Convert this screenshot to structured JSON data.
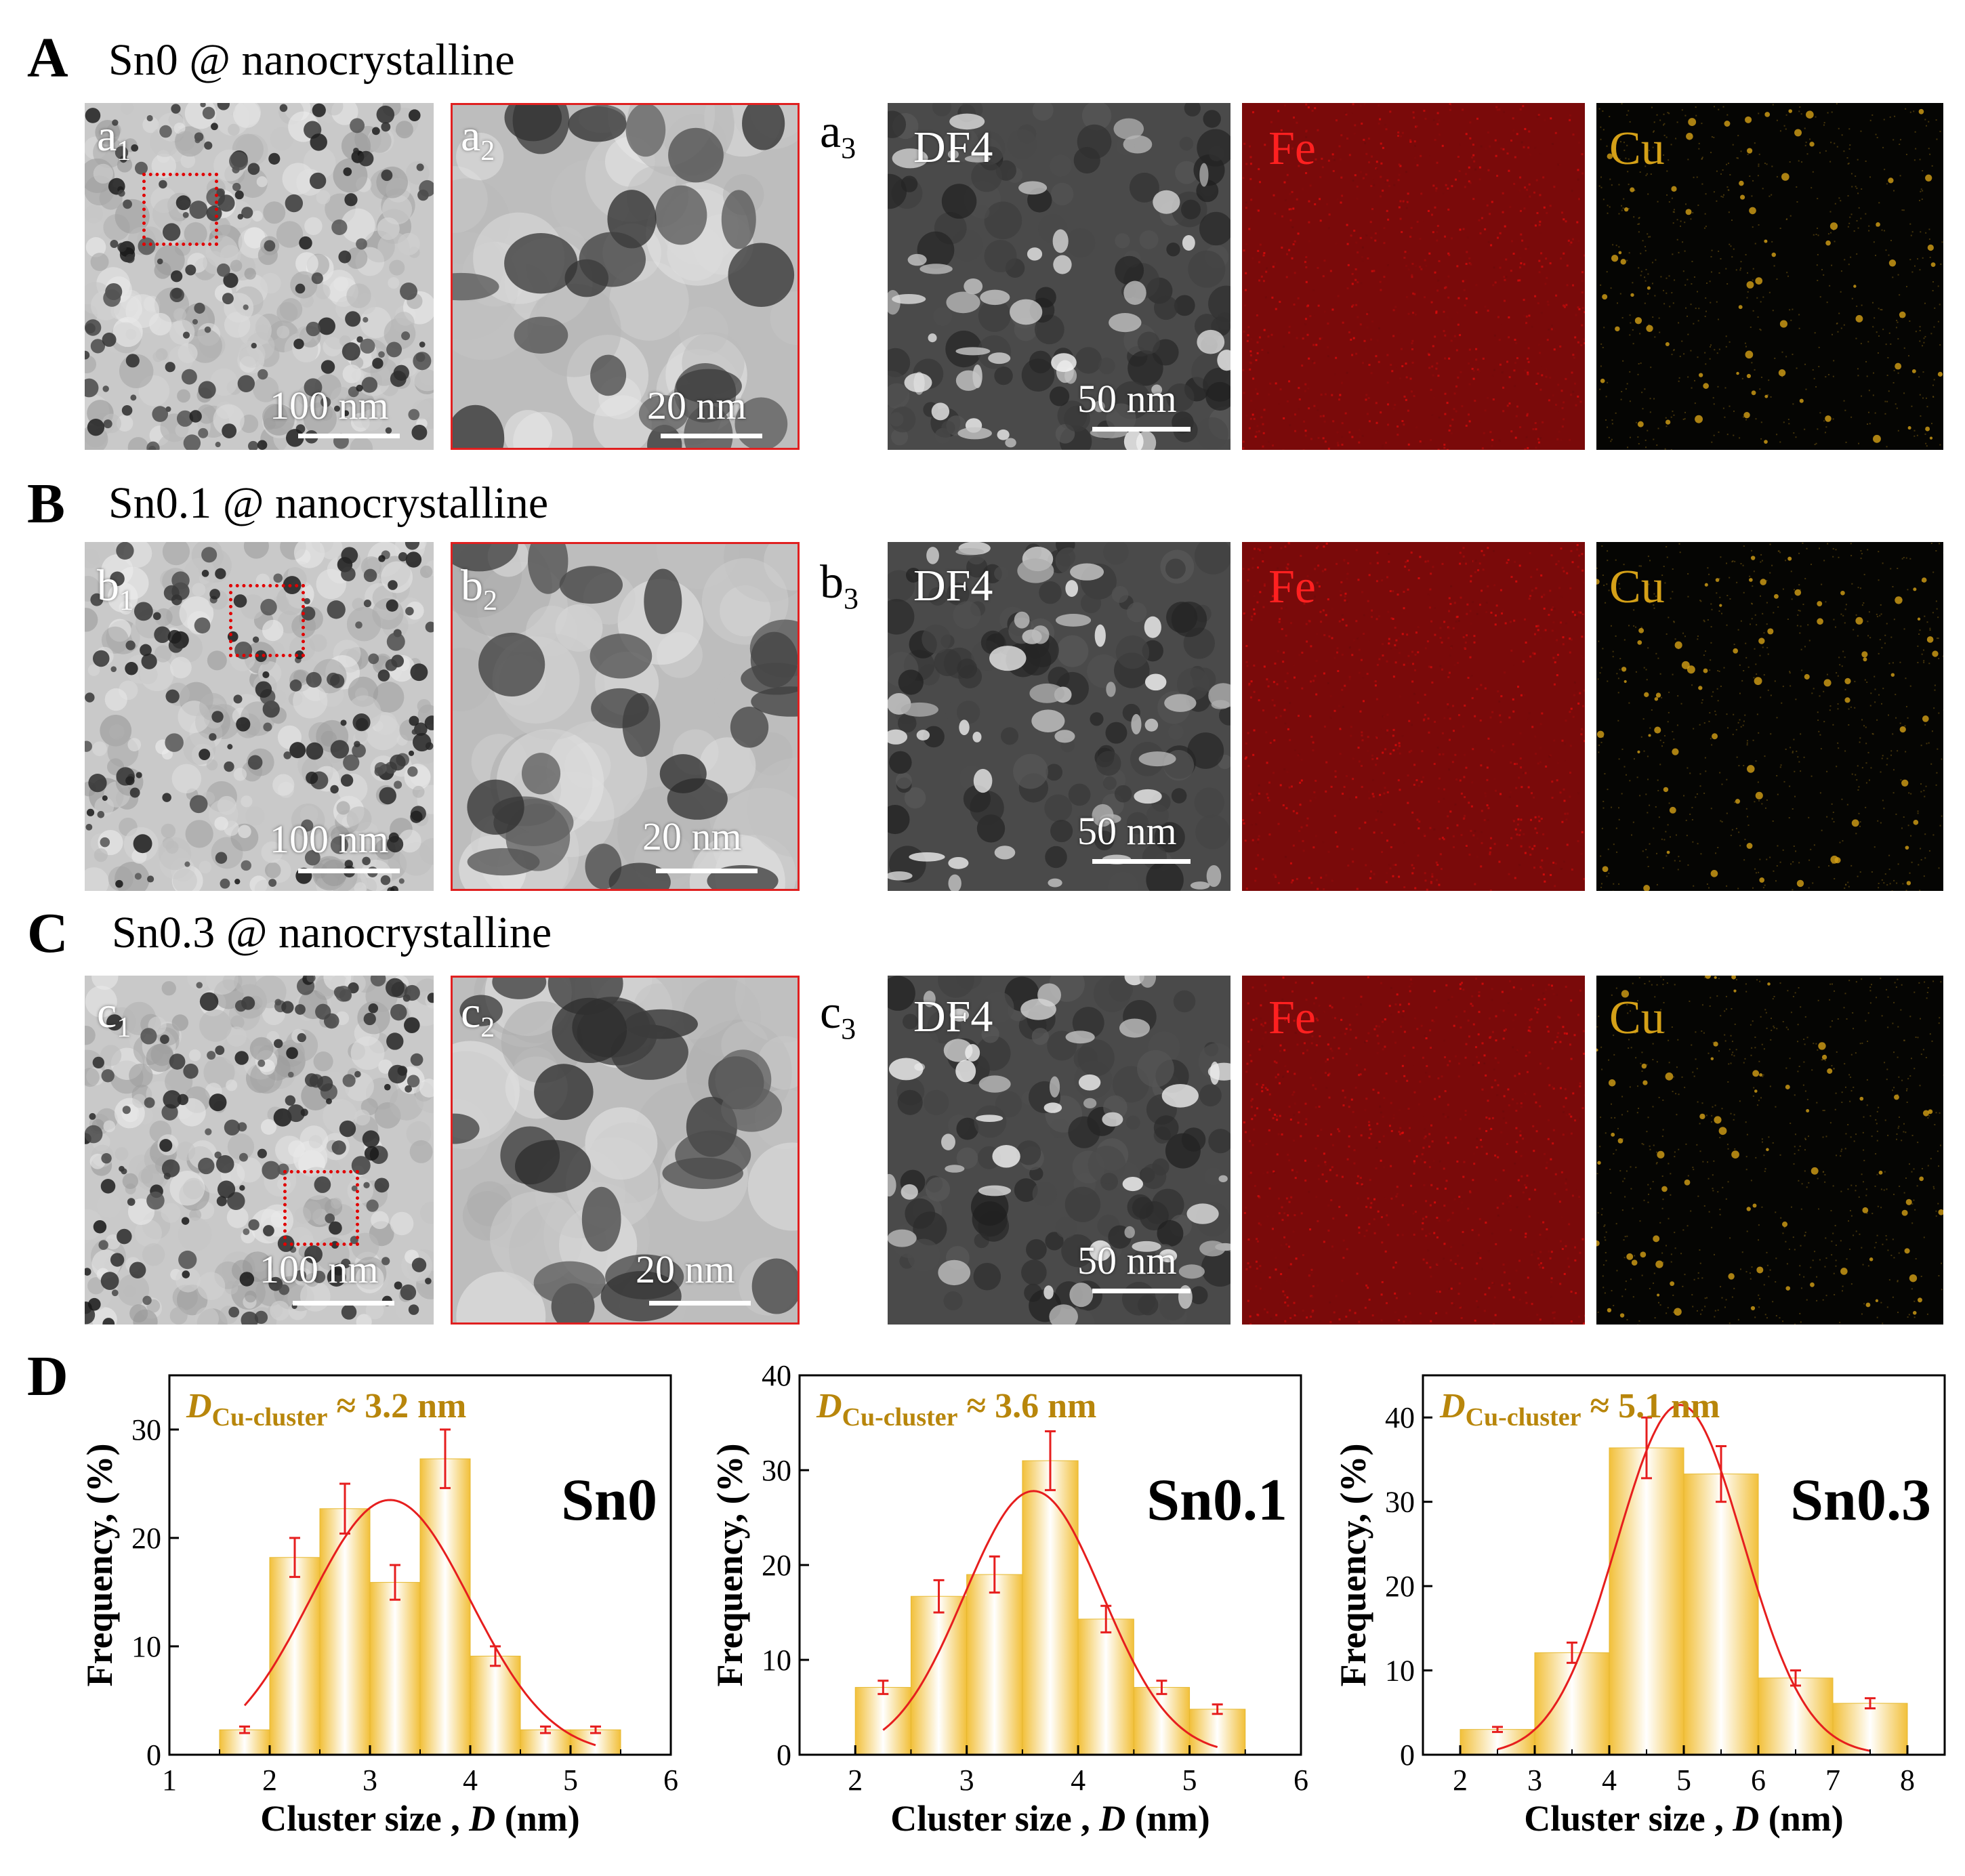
{
  "rows": [
    {
      "letter": "A",
      "title": "Sn0 @ nanocrystalline",
      "p1": "a",
      "p1_sub": "1",
      "p2": "a",
      "p2_sub": "2",
      "p3": "a",
      "p3_sub": "3"
    },
    {
      "letter": "B",
      "title": "Sn0.1 @ nanocrystalline",
      "p1": "b",
      "p1_sub": "1",
      "p2": "b",
      "p2_sub": "2",
      "p3": "b",
      "p3_sub": "3"
    },
    {
      "letter": "C",
      "title": "Sn0.3 @ nanocrystalline",
      "p1": "c",
      "p1_sub": "1",
      "p2": "c",
      "p2_sub": "2",
      "p3": "c",
      "p3_sub": "3"
    }
  ],
  "labels": {
    "df": "DF4",
    "fe": "Fe",
    "cu": "Cu"
  },
  "scalebars": {
    "overview": "100 nm",
    "zoom": "20 nm",
    "df": "50 nm"
  },
  "colors": {
    "fe_map": "#d01010",
    "cu_map": "#d4a017",
    "zoom_frame": "#e02020",
    "bar_fill": "#f2c03a",
    "fit_curve": "#e61e1e",
    "annotation": "#b8860b"
  },
  "panel_d": {
    "letter": "D"
  },
  "chart_data": [
    {
      "type": "bar",
      "sample": "Sn0",
      "annotation": "D",
      "annotation_sub": "Cu-cluster",
      "annotation_value": "≈ 3.2 nm",
      "xlabel": "Cluster size , D (nm)",
      "ylabel": "Frequency, (%)",
      "xlim": [
        1,
        6
      ],
      "ylim": [
        0,
        35
      ],
      "xticks": [
        1,
        2,
        3,
        4,
        5,
        6
      ],
      "yticks": [
        0,
        10,
        20,
        30
      ],
      "bin_width": 0.5,
      "x": [
        1.75,
        2.25,
        2.75,
        3.25,
        3.75,
        4.25,
        4.75,
        5.25
      ],
      "values": [
        2.3,
        18.2,
        22.7,
        15.9,
        27.3,
        9.1,
        2.3,
        2.3
      ],
      "errors": [
        0.3,
        1.8,
        2.3,
        1.6,
        2.7,
        0.9,
        0.3,
        0.3
      ],
      "fit": {
        "mean": 3.2,
        "sigma": 0.8,
        "amplitude": 23.5,
        "xrange": [
          1.75,
          5.25
        ]
      }
    },
    {
      "type": "bar",
      "sample": "Sn0.1",
      "annotation": "D",
      "annotation_sub": "Cu-cluster",
      "annotation_value": "≈ 3.6 nm",
      "xlabel": "Cluster size , D (nm)",
      "ylabel": "Frequency, (%)",
      "xlim": [
        1.5,
        6
      ],
      "ylim": [
        0,
        40
      ],
      "xticks": [
        2,
        3,
        4,
        5,
        6
      ],
      "yticks": [
        0,
        10,
        20,
        30,
        40
      ],
      "bin_width": 0.5,
      "x": [
        2.25,
        2.75,
        3.25,
        3.75,
        4.25,
        4.75,
        5.25
      ],
      "values": [
        7.1,
        16.7,
        19.0,
        31.0,
        14.3,
        7.1,
        4.8
      ],
      "errors": [
        0.7,
        1.7,
        1.9,
        3.1,
        1.4,
        0.7,
        0.5
      ],
      "fit": {
        "mean": 3.6,
        "sigma": 0.62,
        "amplitude": 27.8,
        "xrange": [
          2.25,
          5.25
        ]
      }
    },
    {
      "type": "bar",
      "sample": "Sn0.3",
      "annotation": "D",
      "annotation_sub": "Cu-cluster",
      "annotation_value": "≈ 5.1 nm",
      "xlabel": "Cluster size , D (nm)",
      "ylabel": "Frequency, (%)",
      "xlim": [
        1.5,
        8.5
      ],
      "ylim": [
        0,
        45
      ],
      "xticks": [
        2,
        3,
        4,
        5,
        6,
        7,
        8
      ],
      "yticks": [
        0,
        10,
        20,
        30,
        40
      ],
      "bin_width": 1,
      "x": [
        2.5,
        3.5,
        4.5,
        5.5,
        6.5,
        7.5
      ],
      "values": [
        3.0,
        12.1,
        36.4,
        33.3,
        9.1,
        6.1
      ],
      "errors": [
        0.3,
        1.2,
        3.6,
        3.3,
        0.9,
        0.6
      ],
      "fit": {
        "mean": 4.95,
        "sigma": 0.85,
        "amplitude": 41.5,
        "xrange": [
          2.5,
          7.5
        ]
      }
    }
  ]
}
